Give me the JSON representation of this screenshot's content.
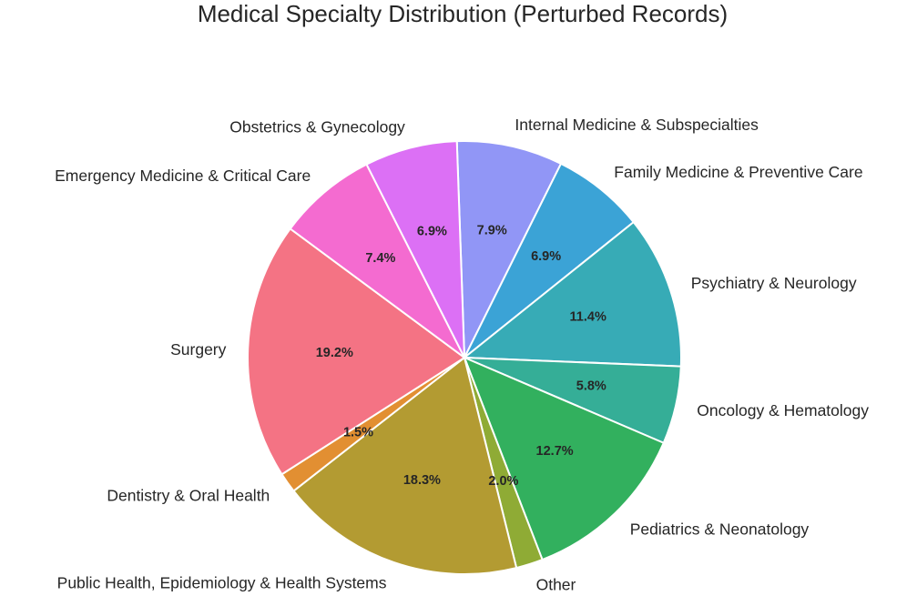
{
  "chart_data": {
    "type": "pie",
    "title": "Medical Specialty Distribution (Perturbed Records)",
    "start_angle_deg": 92,
    "direction": "clockwise",
    "slices": [
      {
        "label": "Internal Medicine & Subspecialties",
        "value": 7.9,
        "pct_label": "7.9%",
        "color": "#9196f6"
      },
      {
        "label": "Family Medicine & Preventive Care",
        "value": 6.9,
        "pct_label": "6.9%",
        "color": "#3ba3d6"
      },
      {
        "label": "Psychiatry & Neurology",
        "value": 11.4,
        "pct_label": "11.4%",
        "color": "#37abb6"
      },
      {
        "label": "Oncology & Hematology",
        "value": 5.8,
        "pct_label": "5.8%",
        "color": "#35ae97"
      },
      {
        "label": "Pediatrics & Neonatology",
        "value": 12.7,
        "pct_label": "12.7%",
        "color": "#32b05e"
      },
      {
        "label": "Other",
        "value": 2.0,
        "pct_label": "2.0%",
        "color": "#8fab35"
      },
      {
        "label": "Public Health, Epidemiology & Health Systems",
        "value": 18.3,
        "pct_label": "18.3%",
        "color": "#b39b32"
      },
      {
        "label": "Dentistry & Oral Health",
        "value": 1.5,
        "pct_label": "1.5%",
        "color": "#e28f32"
      },
      {
        "label": "Surgery",
        "value": 19.2,
        "pct_label": "19.2%",
        "color": "#f47384"
      },
      {
        "label": "Emergency Medicine & Critical Care",
        "value": 7.4,
        "pct_label": "7.4%",
        "color": "#f46bd0"
      },
      {
        "label": "Obstetrics & Gynecology",
        "value": 6.9,
        "pct_label": "6.9%",
        "color": "#dc70f5"
      }
    ]
  }
}
